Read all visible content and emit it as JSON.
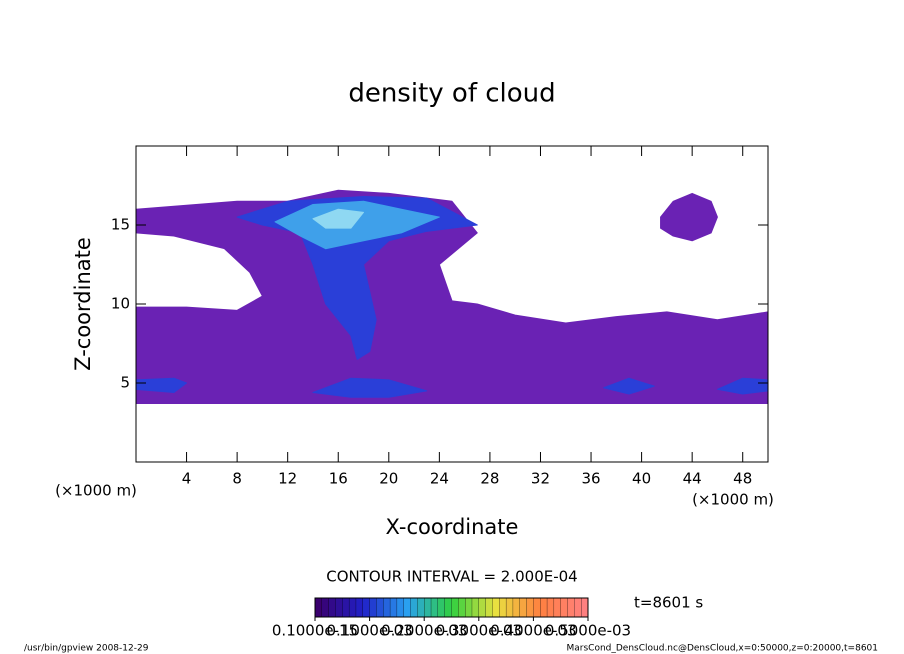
{
  "chart_data": {
    "type": "contour",
    "title": "density of cloud",
    "x_label": "X-coordinate",
    "y_label": "Z-coordinate",
    "x_unit": "(×1000 m)",
    "y_unit": "(×1000 m)",
    "xlim": [
      0,
      50
    ],
    "ylim": [
      0,
      20
    ],
    "xticks": [
      4,
      8,
      12,
      16,
      20,
      24,
      28,
      32,
      36,
      40,
      44,
      48
    ],
    "yticks": [
      5,
      10,
      15
    ],
    "contour_interval": "CONTOUR INTERVAL = 2.000E-04",
    "time_label": "t=8601 s",
    "regions": [
      {
        "level": 1e-16,
        "color": "#6a22b4",
        "x": [
          0,
          50,
          50,
          46,
          42,
          38,
          34,
          30,
          27,
          25,
          24,
          27,
          25,
          20,
          16,
          12,
          8,
          0,
          0,
          3,
          7,
          9,
          10,
          8,
          4,
          0
        ],
        "z": [
          3.7,
          3.7,
          9.5,
          9,
          9.5,
          9.2,
          8.8,
          9.3,
          10,
          10.2,
          12.5,
          14.5,
          16.5,
          17,
          17.2,
          16.5,
          16.5,
          16,
          14.5,
          14.3,
          13.5,
          12,
          10.5,
          9.6,
          9.8,
          9.8
        ]
      },
      {
        "level": 1e-16,
        "color": "#6a22b4",
        "x": [
          41.5,
          42.5,
          44,
          45.5,
          46,
          45.5,
          44,
          42.5,
          41.5
        ],
        "z": [
          15.5,
          16.5,
          17,
          16.5,
          15.5,
          14.5,
          14,
          14.3,
          14.8
        ]
      },
      {
        "level": 0.0001,
        "color": "#2a3fd8",
        "x": [
          8,
          12,
          18,
          23,
          27,
          23,
          20,
          18,
          19,
          18.5,
          17.5,
          17,
          15,
          14,
          13,
          10
        ],
        "z": [
          15.5,
          16.5,
          16.8,
          16.7,
          15,
          14.6,
          14,
          12.5,
          9,
          7,
          6.5,
          8,
          10,
          12.5,
          14.5,
          15
        ]
      },
      {
        "level": 0.0001,
        "color": "#2a3fd8",
        "x": [
          0,
          3,
          4,
          3,
          0
        ],
        "z": [
          4.6,
          4.4,
          5,
          5.3,
          5.2
        ]
      },
      {
        "level": 0.0001,
        "color": "#2a3fd8",
        "x": [
          14,
          17,
          20,
          23,
          20,
          17
        ],
        "z": [
          4.4,
          4.1,
          4.1,
          4.5,
          5.2,
          5.3
        ]
      },
      {
        "level": 0.0001,
        "color": "#2a3fd8",
        "x": [
          37,
          39,
          41,
          39
        ],
        "z": [
          4.7,
          4.3,
          4.8,
          5.3
        ]
      },
      {
        "level": 0.0001,
        "color": "#2a3fd8",
        "x": [
          46,
          48,
          50,
          50,
          48
        ],
        "z": [
          4.6,
          4.3,
          4.5,
          5.2,
          5.3
        ]
      },
      {
        "level": 0.0002,
        "color": "#3fa0ea",
        "x": [
          11,
          14,
          18,
          21,
          24,
          21,
          18,
          15,
          13
        ],
        "z": [
          15.2,
          16.3,
          16.5,
          16,
          15.5,
          14.5,
          14,
          13.5,
          14.3
        ]
      },
      {
        "level": 0.0003,
        "color": "#8fd8f2",
        "x": [
          14,
          16,
          18,
          17,
          15
        ],
        "z": [
          15.4,
          16,
          15.8,
          14.8,
          14.8
        ]
      }
    ],
    "colormap": [
      "#3a006e",
      "#2020c8",
      "#2aa0f0",
      "#30d040",
      "#e8e040",
      "#ff8040",
      "#ff8080"
    ],
    "clim": [
      0,
      0.0005
    ],
    "cticks": [
      {
        "value": 1e-16,
        "label": "0.1000e-15"
      },
      {
        "value": 0.0001,
        "label": "0.1000e-03"
      },
      {
        "value": 0.0002,
        "label": "0.2000e-03"
      },
      {
        "value": 0.0003,
        "label": "0.3000e-03"
      },
      {
        "value": 0.0004,
        "label": "0.4000e-03"
      },
      {
        "value": 0.0005,
        "label": "0.5000e-03"
      }
    ],
    "footer_left": "/usr/bin/gpview   2008-12-29",
    "footer_right": "MarsCond_DensCloud.nc@DensCloud,x=0:50000,z=0:20000,t=8601"
  }
}
